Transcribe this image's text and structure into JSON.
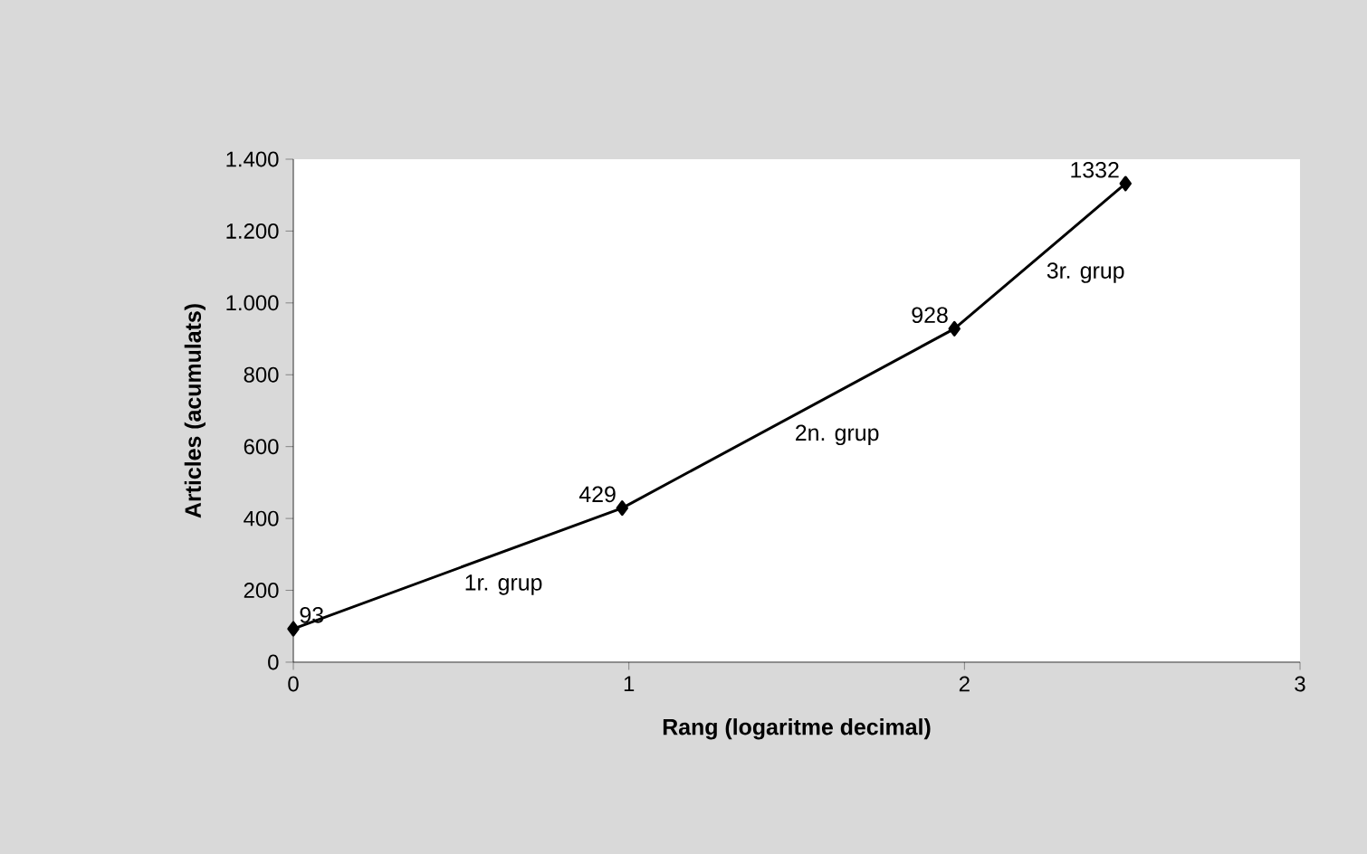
{
  "chart_data": {
    "type": "line",
    "xlabel": "Rang (logaritme decimal)",
    "ylabel": "Articles (acumulats)",
    "x": [
      0,
      0.98,
      1.97,
      2.48
    ],
    "values": [
      93,
      429,
      928,
      1332
    ],
    "color": "#000000",
    "marker": "diamond",
    "line_style": "solid",
    "data_labels": true,
    "xlim": [
      0,
      3
    ],
    "xticks": [
      0,
      1,
      2,
      3
    ],
    "ylim": [
      0,
      1400
    ],
    "yticks": [
      0,
      200,
      400,
      600,
      800,
      {
        "value": 1000,
        "label": "1.000"
      },
      {
        "value": 1200,
        "label": "1.200"
      },
      {
        "value": 1400,
        "label": "1.400"
      }
    ],
    "annotations": [
      "1r. grup",
      "2n. grup",
      "3r. grup"
    ],
    "grid": false
  }
}
